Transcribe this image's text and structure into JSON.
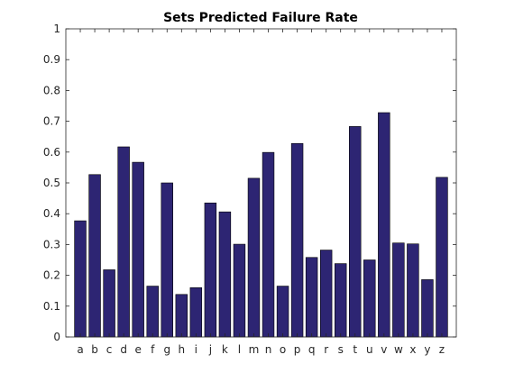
{
  "chart_data": {
    "type": "bar",
    "title": "Sets Predicted Failure Rate",
    "xlabel": "",
    "ylabel": "",
    "categories": [
      "a",
      "b",
      "c",
      "d",
      "e",
      "f",
      "g",
      "h",
      "i",
      "j",
      "k",
      "l",
      "m",
      "n",
      "o",
      "p",
      "q",
      "r",
      "s",
      "t",
      "u",
      "v",
      "w",
      "x",
      "y",
      "z"
    ],
    "values": [
      0.377,
      0.527,
      0.218,
      0.617,
      0.567,
      0.165,
      0.5,
      0.138,
      0.16,
      0.435,
      0.406,
      0.301,
      0.515,
      0.599,
      0.165,
      0.628,
      0.258,
      0.282,
      0.238,
      0.683,
      0.25,
      0.728,
      0.305,
      0.302,
      0.186,
      0.518
    ],
    "ylim": [
      0,
      1
    ],
    "yticks": [
      "0",
      "0.1",
      "0.2",
      "0.3",
      "0.4",
      "0.5",
      "0.6",
      "0.7",
      "0.8",
      "0.9",
      "1"
    ],
    "bar_color": "#2d2573",
    "grid": false,
    "legend": "none"
  }
}
